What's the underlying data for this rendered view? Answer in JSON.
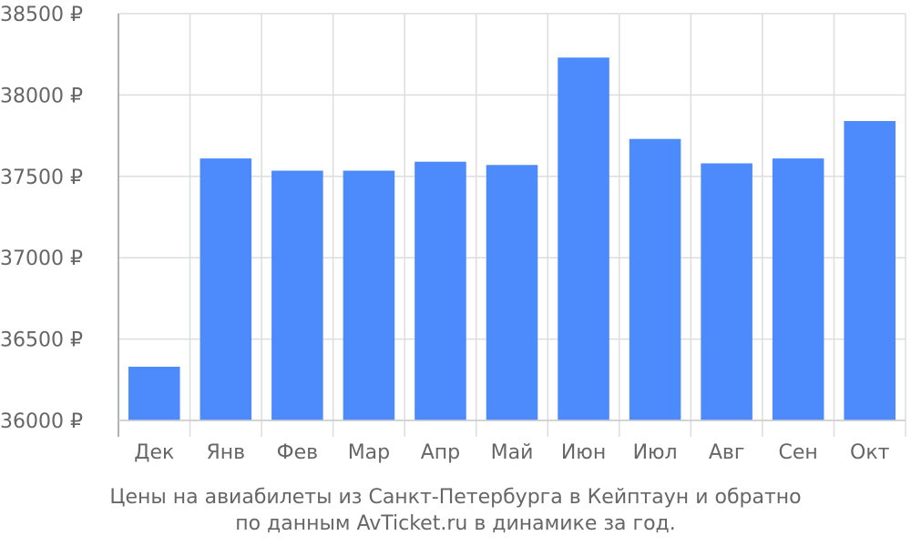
{
  "chart_data": {
    "type": "bar",
    "categories": [
      "Дек",
      "Янв",
      "Фев",
      "Мар",
      "Апр",
      "Май",
      "Июн",
      "Июл",
      "Авг",
      "Сен",
      "Окт"
    ],
    "values": [
      36330,
      37610,
      37535,
      37535,
      37590,
      37570,
      38230,
      37730,
      37580,
      37610,
      37840
    ],
    "currency_suffix": " ₽",
    "ylim": [
      36000,
      38500
    ],
    "yticks": [
      36000,
      36500,
      37000,
      37500,
      38000,
      38500
    ],
    "grid": true,
    "bar_color": "#4d8afc",
    "title": "",
    "xlabel": "",
    "ylabel": "",
    "caption": [
      "Цены на авиабилеты из Санкт-Петербурга в Кейптаун и обратно",
      "по данным AvTicket.ru в динамике за год."
    ]
  }
}
